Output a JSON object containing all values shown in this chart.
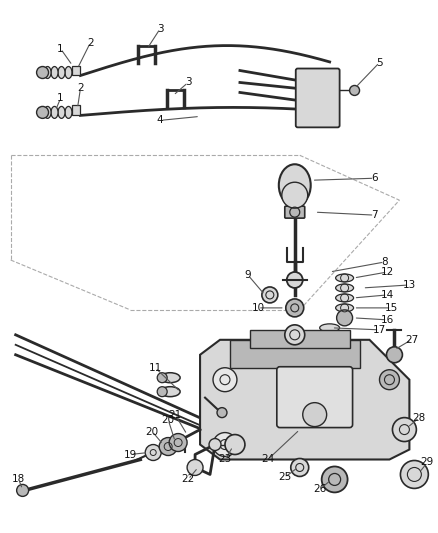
{
  "background_color": "#ffffff",
  "line_color": "#2a2a2a",
  "figsize": [
    4.38,
    5.33
  ],
  "dpi": 100,
  "part_fill": "#d8d8d8",
  "part_fill2": "#b8b8b8",
  "leader_color": "#555555"
}
